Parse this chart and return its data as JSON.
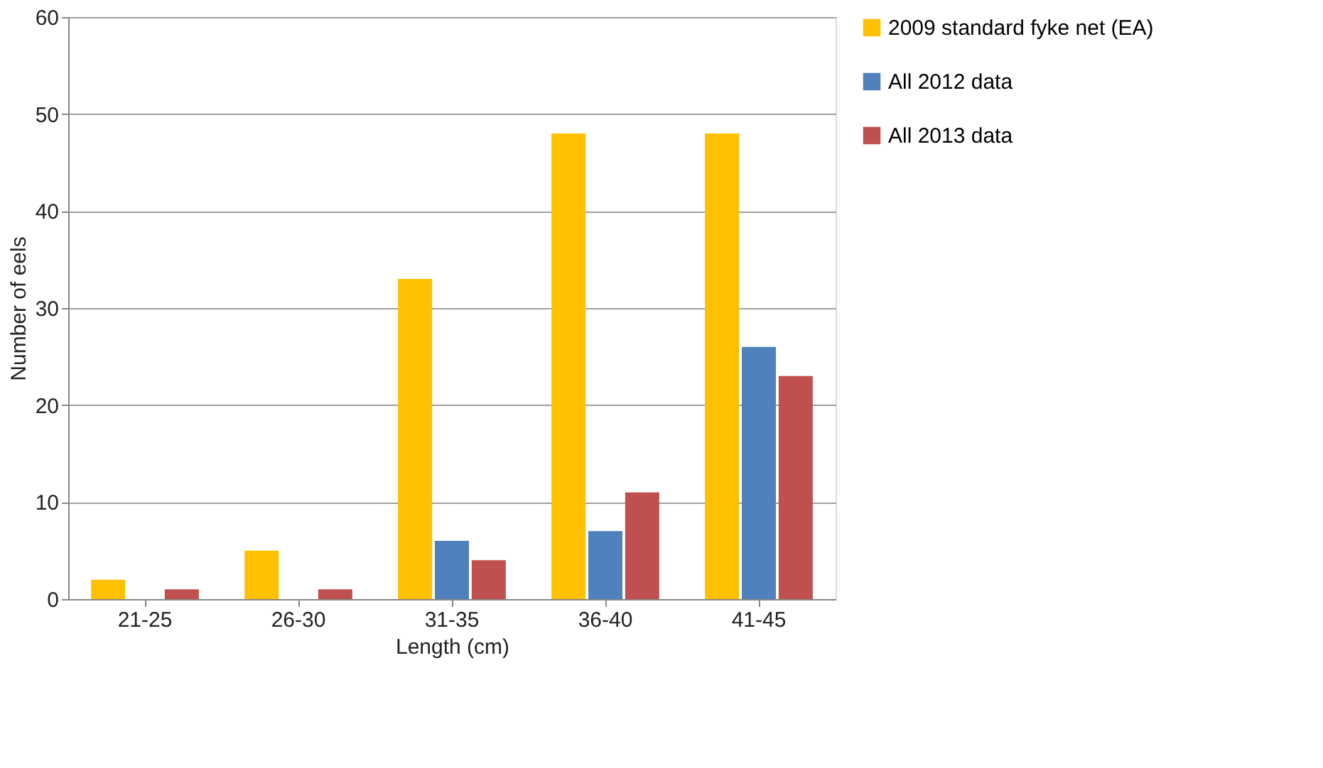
{
  "chart_data": {
    "type": "bar",
    "xlabel": "Length (cm)",
    "ylabel": "Number of eels",
    "categories": [
      "21-25",
      "26-30",
      "31-35",
      "36-40",
      "41-45"
    ],
    "series": [
      {
        "name": "2009 standard fyke net (EA)",
        "color": "#ffc000",
        "values": [
          2,
          5,
          33,
          48,
          48
        ]
      },
      {
        "name": "All 2012 data",
        "color": "#4f81bd",
        "values": [
          0,
          0,
          6,
          7,
          26
        ]
      },
      {
        "name": "All 2013 data",
        "color": "#c0504d",
        "values": [
          1,
          1,
          4,
          11,
          23
        ]
      }
    ],
    "ylim": [
      0,
      60
    ],
    "yticks": [
      0,
      10,
      20,
      30,
      40,
      50,
      60
    ],
    "grid": "y",
    "legend": "right"
  }
}
